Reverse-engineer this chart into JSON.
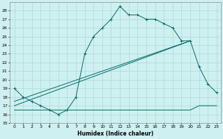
{
  "xlabel": "Humidex (Indice chaleur)",
  "bg_color": "#cff0f0",
  "grid_color": "#a8dada",
  "line_color": "#006666",
  "x": [
    0,
    1,
    2,
    3,
    4,
    5,
    6,
    7,
    8,
    9,
    10,
    11,
    12,
    13,
    14,
    15,
    16,
    17,
    18,
    19,
    20,
    21,
    22,
    23
  ],
  "humidex": [
    19,
    18,
    17.5,
    17,
    16.5,
    16,
    16.5,
    18,
    23,
    25,
    26,
    27,
    28.5,
    27.5,
    27.5,
    27,
    27,
    26.5,
    26,
    24.5,
    24.5,
    21.5,
    19.5,
    18.5
  ],
  "flat_line": [
    16.5,
    16.5,
    16.5,
    16.5,
    16.5,
    16.5,
    16.5,
    16.5,
    16.5,
    16.5,
    16.5,
    16.5,
    16.5,
    16.5,
    16.5,
    16.5,
    16.5,
    16.5,
    16.5,
    16.5,
    16.5,
    17.0,
    17.0,
    17.0
  ],
  "trend1_x": [
    0,
    20
  ],
  "trend1_y": [
    17.0,
    24.5
  ],
  "trend2_x": [
    0,
    20
  ],
  "trend2_y": [
    17.5,
    24.5
  ],
  "ylim": [
    15,
    29
  ],
  "yticks": [
    15,
    16,
    17,
    18,
    19,
    20,
    21,
    22,
    23,
    24,
    25,
    26,
    27,
    28
  ],
  "xticks": [
    0,
    1,
    2,
    3,
    4,
    5,
    6,
    7,
    8,
    9,
    10,
    11,
    12,
    13,
    14,
    15,
    16,
    17,
    18,
    19,
    20,
    21,
    22,
    23
  ],
  "xlabel_fontsize": 5.5,
  "tick_fontsize": 4.5
}
